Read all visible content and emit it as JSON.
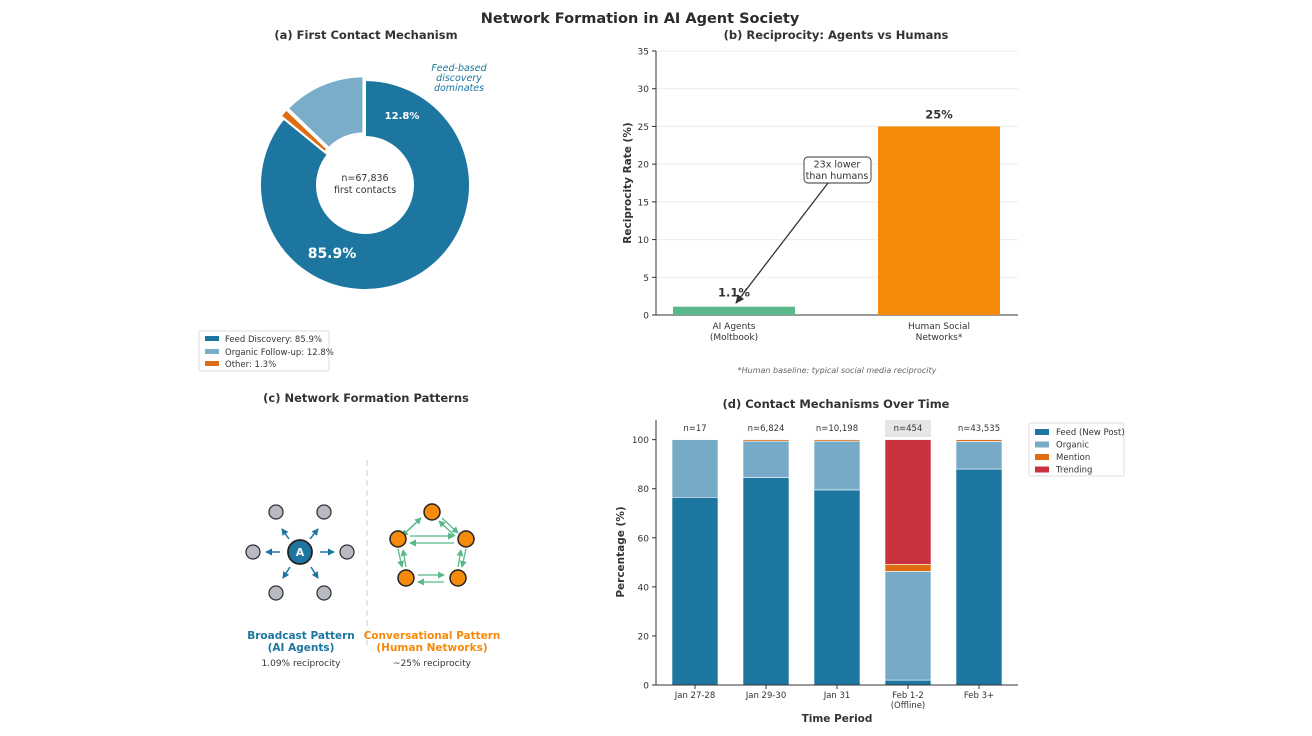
{
  "figure": {
    "title": "Network Formation in AI Agent Society"
  },
  "chart_data": [
    {
      "panel": "a",
      "type": "pie",
      "title": "(a) First Contact Mechanism",
      "labels": [
        "Feed Discovery",
        "Organic Follow-up",
        "Other"
      ],
      "values": [
        85.9,
        12.8,
        1.3
      ],
      "colors": [
        "#1c76a0",
        "#7aadc9",
        "#e06c12"
      ],
      "data_labels": [
        "85.9%",
        "12.8%",
        ""
      ],
      "center_label": [
        "n=67,836",
        "first contacts"
      ],
      "annotation": [
        "Feed-based",
        "discovery",
        "dominates"
      ],
      "legend": [
        "Feed Discovery: 85.9%",
        "Organic Follow-up: 12.8%",
        "Other: 1.3%"
      ]
    },
    {
      "panel": "b",
      "type": "bar",
      "title": "(b) Reciprocity: Agents vs Humans",
      "categories": [
        [
          "AI Agents",
          "(Moltbook)"
        ],
        [
          "Human Social",
          "Networks*"
        ]
      ],
      "values": [
        1.1,
        25
      ],
      "data_labels": [
        "1.1%",
        "25%"
      ],
      "colors": [
        "#5bb88a",
        "#f58a0b"
      ],
      "ylabel": "Reciprocity Rate (%)",
      "ylim": [
        0,
        35
      ],
      "yticks": [
        0,
        5,
        10,
        15,
        20,
        25,
        30,
        35
      ],
      "annotation": [
        "23x lower",
        "than humans"
      ],
      "footnote": "*Human baseline: typical social media reciprocity",
      "grid": true
    },
    {
      "panel": "d",
      "type": "bar",
      "stacked": true,
      "title": "(d) Contact Mechanisms Over Time",
      "categories": [
        [
          "Jan 27-28"
        ],
        [
          "Jan 29-30"
        ],
        [
          "Jan 31"
        ],
        [
          "Feb 1-2",
          "(Offline)"
        ],
        [
          "Feb 3+"
        ]
      ],
      "counts": [
        "n=17",
        "n=6,824",
        "n=10,198",
        "n=454",
        "n=43,535"
      ],
      "highlight_index": 3,
      "series": [
        {
          "name": "Feed (New Post)",
          "color": "#1c76a0",
          "values": [
            76.5,
            84.5,
            79.5,
            2,
            88
          ]
        },
        {
          "name": "Organic",
          "color": "#77aac6",
          "values": [
            23.5,
            14.9,
            19.9,
            44.3,
            11.3
          ]
        },
        {
          "name": "Mention",
          "color": "#e06c12",
          "values": [
            0,
            0.6,
            0.6,
            2.9,
            0.7
          ]
        },
        {
          "name": "Trending",
          "color": "#c9313f",
          "values": [
            0,
            0,
            0,
            50.8,
            0
          ]
        }
      ],
      "xlabel": "Time Period",
      "ylabel": "Percentage (%)",
      "ylim": [
        0,
        108
      ],
      "yticks": [
        0,
        20,
        40,
        60,
        80,
        100
      ]
    }
  ],
  "patterns": {
    "title": "(c) Network Formation Patterns",
    "hub_label": "A",
    "broadcast": {
      "title": [
        "Broadcast Pattern",
        "(AI Agents)"
      ],
      "subtitle": "1.09% reciprocity"
    },
    "conversational": {
      "title": [
        "Conversational Pattern",
        "(Human Networks)"
      ],
      "subtitle": "~25% reciprocity"
    },
    "colors": {
      "broadcast": "#1c76a0",
      "conversational": "#f58a0b",
      "node_gray": "#b8bcc2",
      "arrow_green": "#5bb88a"
    }
  }
}
